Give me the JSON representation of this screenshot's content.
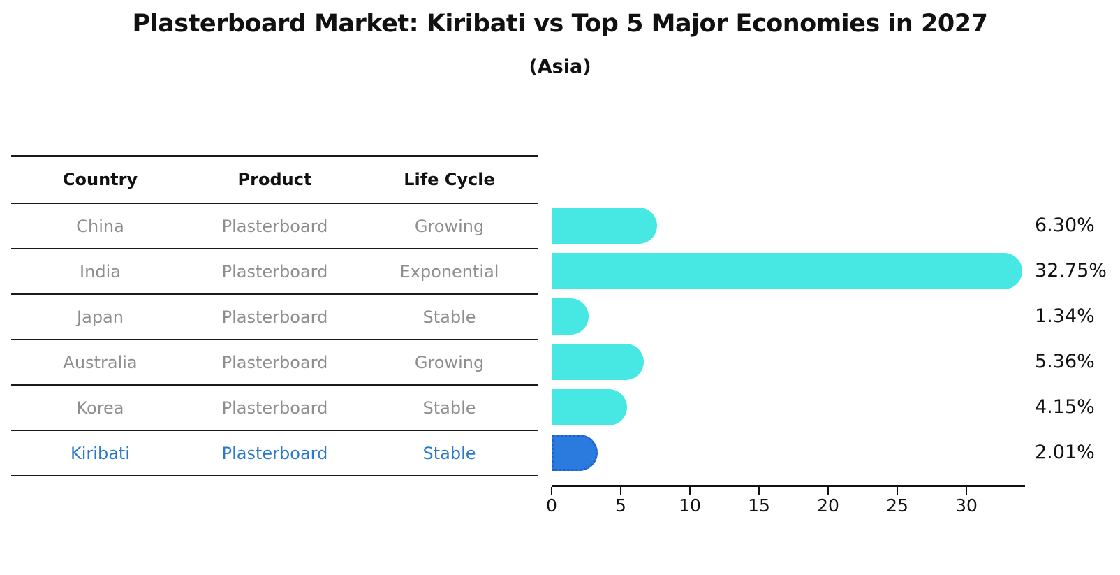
{
  "title": "Plasterboard Market: Kiribati vs Top 5 Major Economies in 2027",
  "subtitle": "(Asia)",
  "table": {
    "columns": [
      "Country",
      "Product",
      "Life Cycle"
    ],
    "rows": [
      {
        "country": "China",
        "product": "Plasterboard",
        "life_cycle": "Growing",
        "highlight": false
      },
      {
        "country": "India",
        "product": "Plasterboard",
        "life_cycle": "Exponential",
        "highlight": false
      },
      {
        "country": "Japan",
        "product": "Plasterboard",
        "life_cycle": "Stable",
        "highlight": false
      },
      {
        "country": "Australia",
        "product": "Plasterboard",
        "life_cycle": "Growing",
        "highlight": false
      },
      {
        "country": "Korea",
        "product": "Plasterboard",
        "life_cycle": "Stable",
        "highlight": false
      },
      {
        "country": "Kiribati",
        "product": "Plasterboard",
        "life_cycle": "Stable",
        "highlight": true
      }
    ]
  },
  "chart_data": {
    "type": "bar",
    "orientation": "horizontal",
    "title": "Plasterboard Market: Kiribati vs Top 5 Major Economies in 2027",
    "subtitle": "(Asia)",
    "categories": [
      "China",
      "India",
      "Japan",
      "Australia",
      "Korea",
      "Kiribati"
    ],
    "values": [
      6.3,
      32.75,
      1.34,
      5.36,
      4.15,
      2.01
    ],
    "labels": [
      "6.30%",
      "32.75%",
      "1.34%",
      "5.36%",
      "4.15%",
      "2.01%"
    ],
    "xticks": [
      0,
      5,
      10,
      15,
      20,
      25,
      30
    ],
    "xlim": [
      0,
      34.4
    ],
    "grid": false,
    "legend": false,
    "highlight_index": 5
  },
  "colors": {
    "bar": "#47e7e4",
    "highlight_bar": "#2b7ade",
    "highlight_border": "#1d5fd0",
    "highlight_text": "#2a79cb",
    "text": "#111111",
    "muted_text": "#8e8e8e",
    "axis": "#111111"
  }
}
